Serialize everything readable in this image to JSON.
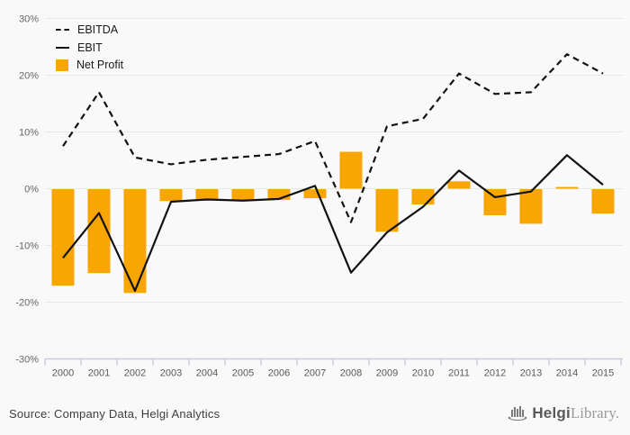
{
  "legend": {
    "items": [
      {
        "label": "EBITDA",
        "swatch": "dashed-line"
      },
      {
        "label": "EBIT",
        "swatch": "solid-line"
      },
      {
        "label": "Net Profit",
        "swatch": "square",
        "color": "#F9A602"
      }
    ]
  },
  "chart_data": {
    "type": "mixed-bar-line",
    "categories": [
      "2000",
      "2001",
      "2002",
      "2003",
      "2004",
      "2005",
      "2006",
      "2007",
      "2008",
      "2009",
      "2010",
      "2011",
      "2012",
      "2013",
      "2014",
      "2015"
    ],
    "series": [
      {
        "name": "EBITDA",
        "type": "line",
        "style": "dashed",
        "color": "#111111",
        "values": [
          7.5,
          17.0,
          5.5,
          4.3,
          5.1,
          5.6,
          6.1,
          8.4,
          -5.9,
          11.0,
          12.3,
          20.3,
          16.7,
          17.0,
          23.7,
          20.3
        ]
      },
      {
        "name": "EBIT",
        "type": "line",
        "style": "solid",
        "color": "#111111",
        "values": [
          -12.2,
          -4.3,
          -18.0,
          -2.3,
          -1.9,
          -2.1,
          -1.8,
          0.5,
          -14.8,
          -7.7,
          -3.2,
          3.2,
          -1.5,
          -0.5,
          5.9,
          0.7
        ]
      },
      {
        "name": "Net Profit",
        "type": "bar",
        "color": "#F9A602",
        "values": [
          -17.0,
          -14.8,
          -18.3,
          -2.1,
          -1.8,
          -2.0,
          -1.9,
          -1.6,
          6.5,
          -7.5,
          -2.7,
          1.3,
          -4.6,
          -6.1,
          0.3,
          -4.3
        ]
      }
    ],
    "ylim": [
      -30,
      30
    ],
    "ytick_step": 10,
    "y_tick_labels": [
      "30%",
      "20%",
      "10%",
      "0%",
      "-10%",
      "-20%",
      "-30%"
    ],
    "grid": true,
    "legend_position": "top-left",
    "title": "",
    "xlabel": "",
    "ylabel": ""
  },
  "footer": {
    "source": "Source: Company Data, Helgi Analytics",
    "logo": {
      "brand": "Helgi",
      "suffix": "Library."
    }
  },
  "colors": {
    "background": "#f9f9f9",
    "gridline": "#e7e7e7",
    "axis": "#c5cbd9",
    "tick_label": "#595959",
    "bar": "#F9A602",
    "line": "#111111"
  }
}
